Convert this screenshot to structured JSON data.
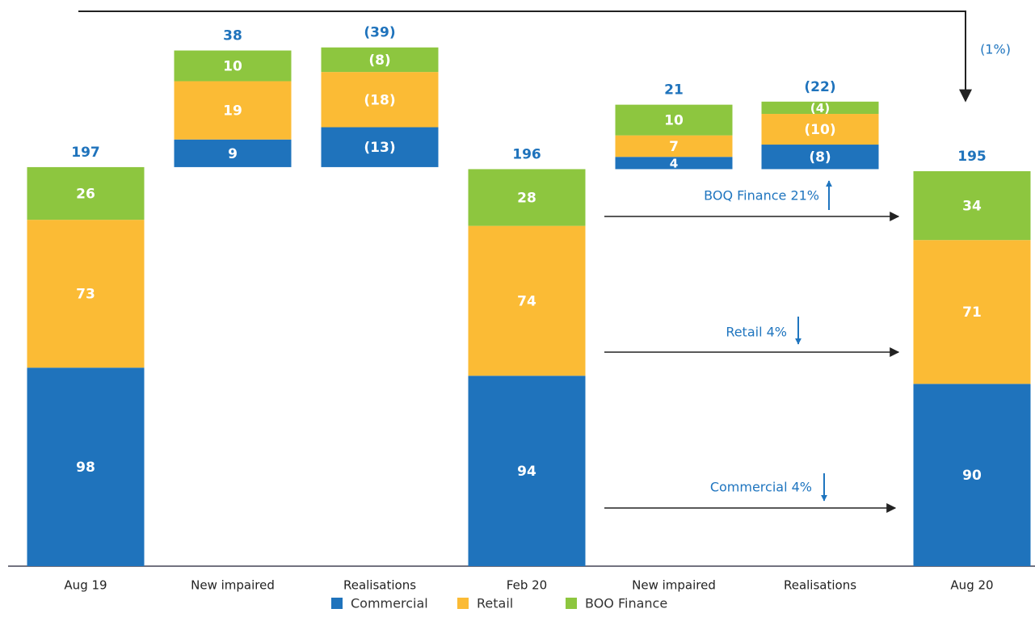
{
  "chart_data": {
    "type": "stacked-waterfall",
    "categories": [
      "Aug 19",
      "New impaired",
      "Realisations",
      "Feb 20",
      "New impaired",
      "Realisations",
      "Aug 20"
    ],
    "series": [
      {
        "name": "Commercial",
        "color": "#1f73bc",
        "values": [
          98,
          9,
          -13,
          94,
          4,
          -8,
          90
        ],
        "value_labels": [
          "98",
          "9",
          "(13)",
          "94",
          "4",
          "(8)",
          "90"
        ]
      },
      {
        "name": "Retail",
        "color": "#fbbb35",
        "values": [
          73,
          19,
          -18,
          74,
          7,
          -10,
          71
        ],
        "value_labels": [
          "73",
          "19",
          "(18)",
          "74",
          "7",
          "(10)",
          "71"
        ]
      },
      {
        "name": "BOO Finance",
        "color": "#8dc63f",
        "values": [
          26,
          10,
          -8,
          28,
          10,
          -4,
          34
        ],
        "value_labels": [
          "26",
          "10",
          "(8)",
          "28",
          "10",
          "(4)",
          "34"
        ]
      }
    ],
    "totals": [
      197,
      38,
      -39,
      196,
      21,
      -22,
      195
    ],
    "total_labels": [
      "197",
      "38",
      "(39)",
      "196",
      "21",
      "(22)",
      "195"
    ],
    "annotations": [
      "(1%)",
      "BOQ Finance 21%",
      "Retail 4%",
      "Commercial 4%"
    ],
    "legend": "bottom"
  }
}
